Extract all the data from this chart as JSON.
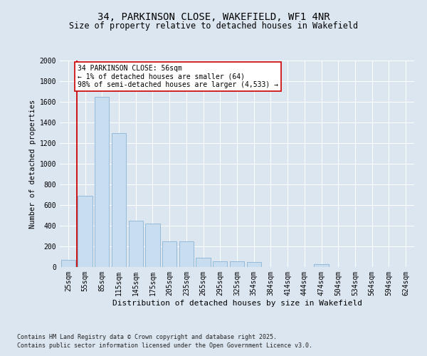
{
  "title_line1": "34, PARKINSON CLOSE, WAKEFIELD, WF1 4NR",
  "title_line2": "Size of property relative to detached houses in Wakefield",
  "xlabel": "Distribution of detached houses by size in Wakefield",
  "ylabel": "Number of detached properties",
  "categories": [
    "25sqm",
    "55sqm",
    "85sqm",
    "115sqm",
    "145sqm",
    "175sqm",
    "205sqm",
    "235sqm",
    "265sqm",
    "295sqm",
    "325sqm",
    "354sqm",
    "384sqm",
    "414sqm",
    "444sqm",
    "474sqm",
    "504sqm",
    "534sqm",
    "564sqm",
    "594sqm",
    "624sqm"
  ],
  "values": [
    70,
    690,
    1650,
    1300,
    450,
    420,
    250,
    250,
    90,
    55,
    55,
    45,
    0,
    0,
    0,
    28,
    0,
    0,
    0,
    0,
    0
  ],
  "bar_color": "#c9ddf0",
  "bar_edge_color": "#8ab4d4",
  "vline_x_index": 0.5,
  "vline_color": "#cc0000",
  "annotation_text": "34 PARKINSON CLOSE: 56sqm\n← 1% of detached houses are smaller (64)\n98% of semi-detached houses are larger (4,533) →",
  "annotation_box_facecolor": "#ffffff",
  "annotation_box_edge": "#cc0000",
  "ylim": [
    0,
    2000
  ],
  "yticks": [
    0,
    200,
    400,
    600,
    800,
    1000,
    1200,
    1400,
    1600,
    1800,
    2000
  ],
  "footer_line1": "Contains HM Land Registry data © Crown copyright and database right 2025.",
  "footer_line2": "Contains public sector information licensed under the Open Government Licence v3.0.",
  "background_color": "#dce6f0",
  "plot_bg_color": "#dce6f0",
  "grid_color": "#ffffff",
  "title_fontsize": 10,
  "subtitle_fontsize": 8.5,
  "tick_fontsize": 7,
  "ylabel_fontsize": 7.5,
  "xlabel_fontsize": 8,
  "footer_fontsize": 6,
  "annot_fontsize": 7
}
